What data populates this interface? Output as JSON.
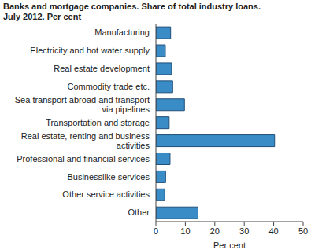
{
  "chart_data": {
    "type": "bar",
    "orientation": "horizontal",
    "title": "Banks and mortgage companies. Share of total industry loans.\nJuly 2012. Per cent",
    "x_label": "Per cent",
    "categories": [
      "Manufacturing",
      "Electricity and hot water supply",
      "Real estate development",
      "Commodity trade etc.",
      "Sea transport abroad and transport via pipelines",
      "Transportation and storage",
      "Real estate, renting and business activities",
      "Professional and financial services",
      "Businesslike services",
      "Other service activities",
      "Other"
    ],
    "values": [
      5.0,
      3.2,
      5.3,
      5.7,
      9.7,
      4.5,
      40.3,
      4.8,
      3.3,
      3.0,
      14.3
    ],
    "color": "#3a8cc6",
    "xlim": [
      0,
      50
    ],
    "xticks": [
      0,
      10,
      20,
      30,
      40,
      50
    ],
    "grid": false
  }
}
